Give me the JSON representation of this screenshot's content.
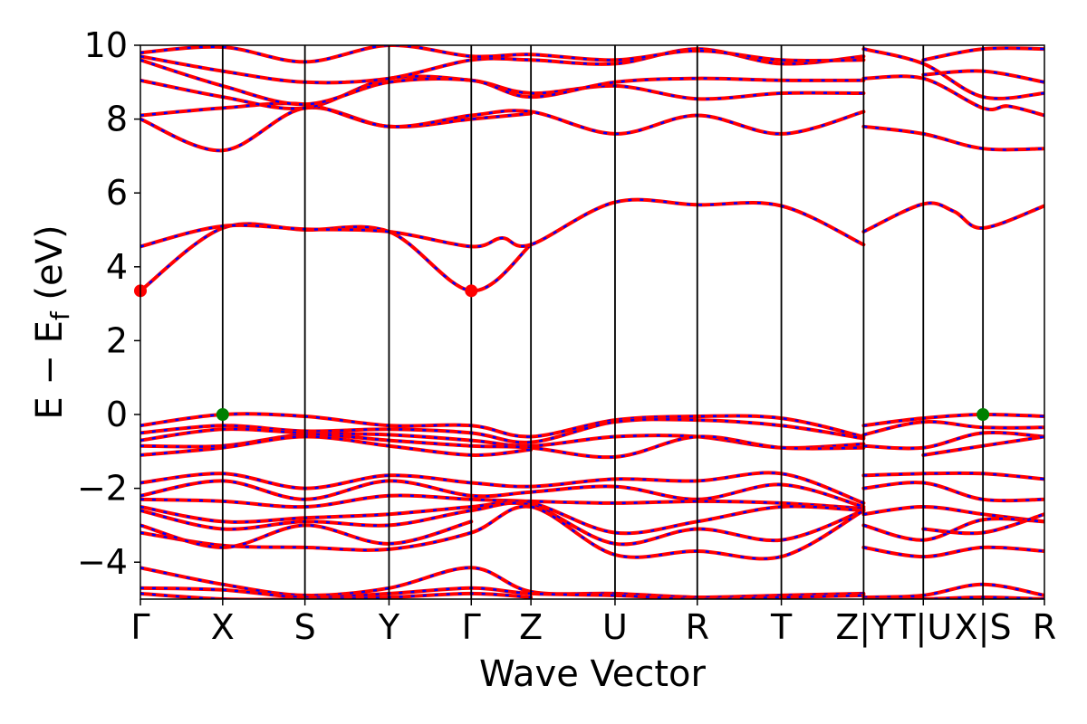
{
  "chart_data": {
    "type": "line",
    "title": "",
    "xlabel": "Wave Vector",
    "ylabel": "E − E",
    "ylabel_sub": "f",
    "ylabel_unit": " (eV)",
    "ylim": [
      -5,
      10
    ],
    "yticks": [
      -4,
      -2,
      0,
      2,
      4,
      6,
      8,
      10
    ],
    "ytick_labels": [
      "−4",
      "−2",
      "0",
      "2",
      "4",
      "6",
      "8",
      "10"
    ],
    "x_range": [
      0,
      1
    ],
    "kpoints": [
      {
        "label": "Γ",
        "x": 0.0
      },
      {
        "label": "X",
        "x": 0.091
      },
      {
        "label": "S",
        "x": 0.182
      },
      {
        "label": "Y",
        "x": 0.275
      },
      {
        "label": "Γ",
        "x": 0.366
      },
      {
        "label": "Z",
        "x": 0.432
      },
      {
        "label": "U",
        "x": 0.525
      },
      {
        "label": "R",
        "x": 0.616
      },
      {
        "label": "T",
        "x": 0.709
      },
      {
        "label": "Z|Y",
        "x": 0.8
      },
      {
        "label": "T|U",
        "x": 0.866
      },
      {
        "label": "X|S",
        "x": 0.932
      },
      {
        "label": "R",
        "x": 1.0
      }
    ],
    "grid": false,
    "line_colors": {
      "primary": "#ff0000",
      "overlay": "#0000ff"
    },
    "markers": [
      {
        "name": "cbm",
        "x": 0.0,
        "y": 3.35,
        "color": "#ff0000"
      },
      {
        "name": "cbm",
        "x": 0.366,
        "y": 3.35,
        "color": "#ff0000"
      },
      {
        "name": "vbm",
        "x": 0.091,
        "y": 0.0,
        "color": "#008000"
      },
      {
        "name": "vbm",
        "x": 0.932,
        "y": 0.0,
        "color": "#008000"
      }
    ],
    "bands": [
      {
        "x": [
          0,
          0.091,
          0.182,
          0.275,
          0.366,
          0.432
        ],
        "y": [
          3.35,
          5.05,
          5.0,
          4.95,
          3.35,
          4.6
        ]
      },
      {
        "x": [
          0,
          0.091,
          0.182,
          0.275,
          0.366,
          0.4,
          0.432,
          0.525,
          0.616,
          0.709,
          0.8
        ],
        "y": [
          4.55,
          5.1,
          5.02,
          4.95,
          4.55,
          4.78,
          4.6,
          5.75,
          5.68,
          5.65,
          4.6
        ]
      },
      {
        "x": [
          0.8,
          0.866,
          0.9,
          0.932,
          1.0
        ],
        "y": [
          4.95,
          5.7,
          5.5,
          5.05,
          5.65
        ]
      },
      {
        "x": [
          0,
          0.091,
          0.182,
          0.275,
          0.366,
          0.432
        ],
        "y": [
          8.0,
          7.15,
          8.3,
          7.8,
          8.0,
          8.15
        ]
      },
      {
        "x": [
          0,
          0.091,
          0.182,
          0.275,
          0.366,
          0.432,
          0.525,
          0.616,
          0.709,
          0.8
        ],
        "y": [
          8.1,
          8.3,
          8.4,
          7.8,
          8.1,
          8.2,
          7.6,
          8.1,
          7.6,
          8.2
        ]
      },
      {
        "x": [
          0,
          0.091,
          0.182,
          0.275,
          0.366,
          0.432,
          0.525,
          0.616,
          0.709,
          0.8
        ],
        "y": [
          9.05,
          8.6,
          8.3,
          9.1,
          9.05,
          8.7,
          8.9,
          8.55,
          8.7,
          8.7
        ]
      },
      {
        "x": [
          0,
          0.091,
          0.182,
          0.275,
          0.366,
          0.432,
          0.525,
          0.616,
          0.709,
          0.8
        ],
        "y": [
          9.6,
          8.9,
          8.4,
          9.0,
          9.05,
          8.6,
          9.0,
          9.1,
          9.05,
          9.05
        ]
      },
      {
        "x": [
          0,
          0.091,
          0.182,
          0.275,
          0.366,
          0.432,
          0.525,
          0.616,
          0.709,
          0.8
        ],
        "y": [
          9.7,
          9.3,
          9.0,
          9.1,
          9.6,
          9.6,
          9.5,
          9.9,
          9.5,
          9.7
        ]
      },
      {
        "x": [
          0,
          0.091,
          0.182,
          0.275,
          0.366,
          0.432,
          0.525,
          0.616,
          0.709,
          0.8
        ],
        "y": [
          9.8,
          9.95,
          9.55,
          10.0,
          9.7,
          9.75,
          9.6,
          9.85,
          9.6,
          9.6
        ]
      },
      {
        "x": [
          0.8,
          0.866,
          0.932,
          1.0
        ],
        "y": [
          7.8,
          7.6,
          7.2,
          7.2
        ]
      },
      {
        "x": [
          0.8,
          0.866,
          0.932,
          0.96,
          1.0
        ],
        "y": [
          9.1,
          9.1,
          8.3,
          8.35,
          8.1
        ]
      },
      {
        "x": [
          0.8,
          0.866,
          0.932,
          1.0
        ],
        "y": [
          9.9,
          9.5,
          8.6,
          8.7
        ]
      },
      {
        "x": [
          0.866,
          0.932,
          1.0
        ],
        "y": [
          9.2,
          9.3,
          9.0
        ]
      },
      {
        "x": [
          0.866,
          0.932,
          1.0
        ],
        "y": [
          9.6,
          9.9,
          9.9
        ]
      },
      {
        "x": [
          0,
          0.091,
          0.182,
          0.275,
          0.366,
          0.432,
          0.525,
          0.616,
          0.709,
          0.8
        ],
        "y": [
          -0.3,
          0.0,
          -0.05,
          -0.3,
          -0.3,
          -0.6,
          -0.15,
          -0.05,
          -0.1,
          -0.6
        ]
      },
      {
        "x": [
          0,
          0.091,
          0.182,
          0.275,
          0.366,
          0.432,
          0.525,
          0.616,
          0.709,
          0.8
        ],
        "y": [
          -0.5,
          -0.3,
          -0.45,
          -0.4,
          -0.5,
          -0.75,
          -0.2,
          -0.15,
          -0.3,
          -0.65
        ]
      },
      {
        "x": [
          0,
          0.091,
          0.182,
          0.275,
          0.366,
          0.432,
          0.525,
          0.616,
          0.709,
          0.8
        ],
        "y": [
          -0.7,
          -0.4,
          -0.5,
          -0.55,
          -0.7,
          -0.85,
          -0.6,
          -0.6,
          -0.9,
          -0.8
        ]
      },
      {
        "x": [
          0,
          0.091,
          0.182,
          0.275,
          0.366,
          0.432,
          0.525,
          0.616,
          0.709,
          0.8
        ],
        "y": [
          -0.85,
          -0.85,
          -0.55,
          -0.7,
          -0.85,
          -0.9,
          -1.15,
          -0.6,
          -0.9,
          -0.9
        ]
      },
      {
        "x": [
          0,
          0.091,
          0.182,
          0.275,
          0.366,
          0.432
        ],
        "y": [
          -1.1,
          -0.9,
          -0.6,
          -0.85,
          -1.1,
          -0.95
        ]
      },
      {
        "x": [
          0.8,
          0.866,
          0.932,
          1.0
        ],
        "y": [
          -0.3,
          -0.1,
          0.0,
          -0.05
        ]
      },
      {
        "x": [
          0.8,
          0.866,
          0.932,
          1.0
        ],
        "y": [
          -0.55,
          -0.2,
          -0.35,
          -0.35
        ]
      },
      {
        "x": [
          0.8,
          0.866,
          0.932,
          1.0
        ],
        "y": [
          -0.85,
          -0.9,
          -0.5,
          -0.6
        ]
      },
      {
        "x": [
          0.866,
          0.932,
          1.0
        ],
        "y": [
          -1.1,
          -0.85,
          -0.6
        ]
      },
      {
        "x": [
          0,
          0.091,
          0.182,
          0.275,
          0.366,
          0.432,
          0.525,
          0.616,
          0.709,
          0.8
        ],
        "y": [
          -1.85,
          -1.6,
          -2.0,
          -1.65,
          -1.85,
          -1.95,
          -1.75,
          -1.8,
          -1.6,
          -2.4
        ]
      },
      {
        "x": [
          0,
          0.091,
          0.182,
          0.275,
          0.366,
          0.432,
          0.525,
          0.616,
          0.709,
          0.8
        ],
        "y": [
          -2.2,
          -1.8,
          -2.3,
          -1.8,
          -2.2,
          -2.1,
          -1.95,
          -2.3,
          -1.9,
          -2.5
        ]
      },
      {
        "x": [
          0,
          0.091,
          0.182,
          0.275,
          0.366,
          0.432,
          0.525,
          0.616,
          0.709,
          0.8
        ],
        "y": [
          -2.3,
          -2.35,
          -2.5,
          -2.2,
          -2.3,
          -2.35,
          -2.4,
          -2.35,
          -2.4,
          -2.55
        ]
      },
      {
        "x": [
          0,
          0.091,
          0.182,
          0.275,
          0.366,
          0.432,
          0.525,
          0.616,
          0.709,
          0.8
        ],
        "y": [
          -2.5,
          -2.9,
          -2.8,
          -2.7,
          -2.5,
          -2.4,
          -3.2,
          -2.9,
          -2.5,
          -2.6
        ]
      },
      {
        "x": [
          0,
          0.091,
          0.182,
          0.275,
          0.366,
          0.432,
          0.525,
          0.616,
          0.709,
          0.8
        ],
        "y": [
          -2.6,
          -3.1,
          -2.9,
          -3.0,
          -2.6,
          -2.45,
          -3.5,
          -3.1,
          -3.4,
          -2.6
        ]
      },
      {
        "x": [
          0,
          0.091,
          0.182,
          0.275,
          0.366,
          0.432,
          0.525,
          0.616,
          0.709,
          0.8
        ],
        "y": [
          -3.2,
          -3.55,
          -3.6,
          -3.65,
          -3.2,
          -2.5,
          -3.8,
          -3.7,
          -3.85,
          -2.6
        ]
      },
      {
        "x": [
          0,
          0.091,
          0.182,
          0.275,
          0.366
        ],
        "y": [
          -3.0,
          -3.6,
          -3.0,
          -3.5,
          -2.9
        ]
      },
      {
        "x": [
          0.8,
          0.866,
          0.932,
          1.0
        ],
        "y": [
          -1.65,
          -1.6,
          -1.6,
          -1.75
        ]
      },
      {
        "x": [
          0.8,
          0.866,
          0.932,
          1.0
        ],
        "y": [
          -2.0,
          -1.85,
          -2.3,
          -2.3
        ]
      },
      {
        "x": [
          0.8,
          0.866,
          0.932,
          1.0
        ],
        "y": [
          -2.7,
          -2.5,
          -2.7,
          -2.9
        ]
      },
      {
        "x": [
          0.8,
          0.866,
          0.932,
          1.0
        ],
        "y": [
          -3.0,
          -3.4,
          -2.85,
          -2.9
        ]
      },
      {
        "x": [
          0.8,
          0.866,
          0.932,
          1.0
        ],
        "y": [
          -3.6,
          -3.85,
          -3.6,
          -3.7
        ]
      },
      {
        "x": [
          0.866,
          0.932,
          1.0
        ],
        "y": [
          -3.1,
          -3.2,
          -2.7
        ]
      },
      {
        "x": [
          0,
          0.091,
          0.182,
          0.275,
          0.366,
          0.432,
          0.525,
          0.616,
          0.709,
          0.8
        ],
        "y": [
          -4.15,
          -4.6,
          -4.9,
          -4.7,
          -4.15,
          -4.8,
          -4.85,
          -4.95,
          -4.9,
          -4.85
        ]
      },
      {
        "x": [
          0,
          0.091,
          0.182,
          0.275,
          0.366,
          0.432,
          0.525,
          0.616,
          0.709,
          0.8
        ],
        "y": [
          -4.7,
          -4.75,
          -4.95,
          -4.85,
          -4.7,
          -4.85,
          -4.9,
          -5.0,
          -4.95,
          -4.9
        ]
      },
      {
        "x": [
          0,
          0.091,
          0.182,
          0.275,
          0.366,
          0.432
        ],
        "y": [
          -4.85,
          -5.0,
          -5.0,
          -4.95,
          -4.85,
          -4.95
        ]
      },
      {
        "x": [
          0.8,
          0.866,
          0.932,
          1.0
        ],
        "y": [
          -4.95,
          -4.9,
          -4.6,
          -4.9
        ]
      },
      {
        "x": [
          0.8,
          0.866,
          0.932,
          1.0
        ],
        "y": [
          -5.0,
          -5.0,
          -4.95,
          -5.0
        ]
      }
    ]
  }
}
